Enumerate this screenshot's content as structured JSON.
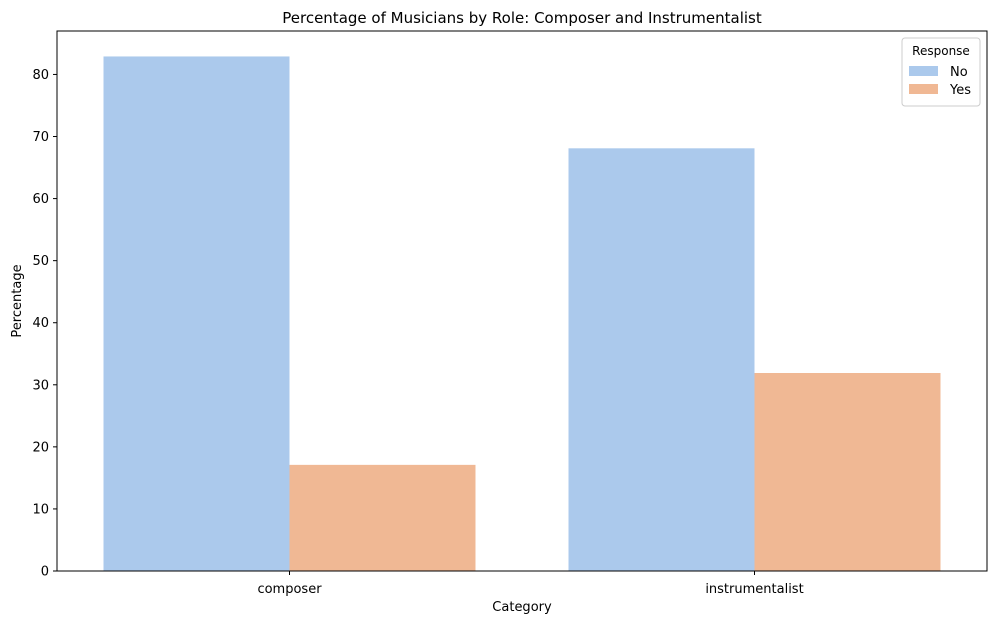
{
  "chart_data": {
    "type": "bar",
    "title": "Percentage of Musicians by Role: Composer and Instrumentalist",
    "xlabel": "Category",
    "ylabel": "Percentage",
    "categories": [
      "composer",
      "instrumentalist"
    ],
    "series": [
      {
        "name": "No",
        "values": [
          82.9,
          68.1
        ],
        "color": "#abc9ec"
      },
      {
        "name": "Yes",
        "values": [
          17.1,
          31.9
        ],
        "color": "#f0b894"
      }
    ],
    "ylim": [
      0,
      87
    ],
    "yticks": [
      0,
      10,
      20,
      30,
      40,
      50,
      60,
      70,
      80
    ],
    "grid": false,
    "legend": {
      "title": "Response",
      "placement": "top-right"
    }
  }
}
